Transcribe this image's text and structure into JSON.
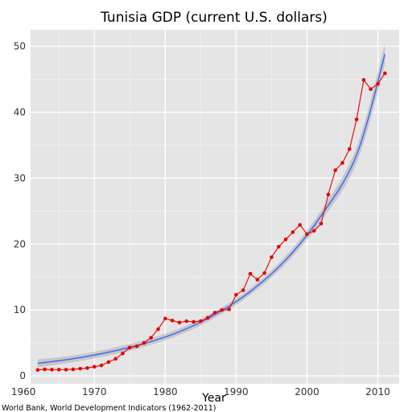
{
  "chart_data": {
    "type": "line",
    "title": "Tunisia GDP (current U.S. dollars)",
    "xlabel": "Year",
    "ylabel": "",
    "xlim": [
      1961.0,
      2013.0
    ],
    "ylim": [
      -1.2,
      52.5
    ],
    "x_ticks": [
      1960,
      1970,
      1980,
      1990,
      2000,
      2010
    ],
    "y_ticks": [
      0,
      10,
      20,
      30,
      40,
      50
    ],
    "grid": true,
    "legend": "none",
    "caption": "World Bank, World Development Indicators (1962-2011)",
    "series": [
      {
        "role": "observed",
        "style": "line-with-points",
        "color": "#e60000",
        "x": [
          1962,
          1963,
          1964,
          1965,
          1966,
          1967,
          1968,
          1969,
          1970,
          1971,
          1972,
          1973,
          1974,
          1975,
          1976,
          1977,
          1978,
          1979,
          1980,
          1981,
          1982,
          1983,
          1984,
          1985,
          1986,
          1987,
          1988,
          1989,
          1990,
          1991,
          1992,
          1993,
          1994,
          1995,
          1996,
          1997,
          1998,
          1999,
          2000,
          2001,
          2002,
          2003,
          2004,
          2005,
          2006,
          2007,
          2008,
          2009,
          2010,
          2011
        ],
        "values": [
          0.9,
          1.0,
          0.95,
          0.95,
          0.95,
          1.0,
          1.1,
          1.2,
          1.4,
          1.6,
          2.1,
          2.6,
          3.4,
          4.3,
          4.5,
          5.0,
          5.8,
          7.1,
          8.7,
          8.4,
          8.1,
          8.3,
          8.2,
          8.3,
          8.8,
          9.6,
          10.0,
          10.1,
          12.3,
          13.0,
          15.5,
          14.6,
          15.6,
          18.0,
          19.6,
          20.7,
          21.8,
          22.9,
          21.5,
          22.0,
          23.1,
          27.5,
          31.2,
          32.3,
          34.4,
          38.9,
          44.9,
          43.5,
          44.3,
          45.9
        ]
      },
      {
        "role": "fit",
        "style": "smooth-line-with-confidence-band",
        "color": "#3366ff",
        "x": [
          1962,
          1967,
          1972,
          1977,
          1982,
          1987,
          1992,
          1997,
          2002,
          2007,
          2011
        ],
        "values": [
          1.9,
          2.6,
          3.6,
          4.9,
          6.7,
          9.3,
          12.8,
          17.6,
          24.3,
          33.5,
          48.8
        ],
        "band_lower": [
          1.3,
          2.1,
          3.1,
          4.4,
          6.2,
          8.8,
          12.3,
          17.0,
          23.5,
          32.3,
          47.2
        ],
        "band_upper": [
          2.5,
          3.1,
          4.1,
          5.4,
          7.2,
          9.8,
          13.3,
          18.2,
          25.1,
          34.7,
          50.4
        ]
      }
    ]
  },
  "colors": {
    "panel_background": "#e5e5e5",
    "grid": "#ffffff",
    "observed": "#e60000",
    "fit": "#3366ff",
    "band": "#999999"
  }
}
